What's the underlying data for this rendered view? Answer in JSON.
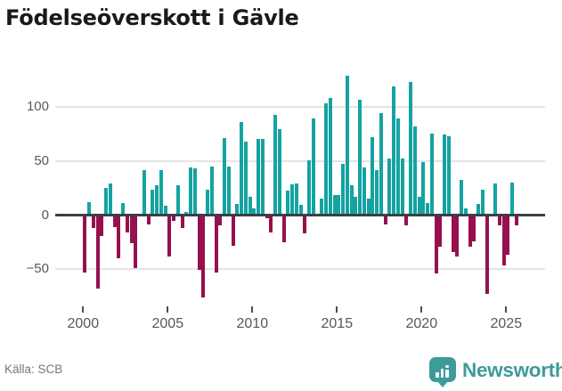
{
  "title": "Födelseöverskott i Gävle",
  "source": "Källa: SCB",
  "branding": {
    "name": "Newsworthy",
    "logo_color": "#3d9b99",
    "logo_icon": "bar-chart-exclamation-bubble-icon"
  },
  "colors": {
    "positive_bar": "#14a3a1",
    "negative_bar": "#97104e",
    "axis": "#3b4047",
    "grid": "#e4e4e4",
    "tick_text": "#585858",
    "title_text": "#191919"
  },
  "chart_data": {
    "type": "bar",
    "title": "Födelseöverskott i Gävle",
    "frequency": "quarterly",
    "x_start": "2000-Q1",
    "x_end": "2025-Q3",
    "x_tick_labels": [
      "2000",
      "2005",
      "2010",
      "2015",
      "2020",
      "2025"
    ],
    "y_ticks": [
      100,
      50,
      0,
      -50
    ],
    "y_tick_labels": [
      "100",
      "50",
      "0",
      "−50"
    ],
    "ylim": [
      -80,
      137
    ],
    "grid": true,
    "legend": false,
    "values": [
      -52,
      11,
      -11,
      -67,
      -18,
      24,
      28,
      -10,
      -39,
      10,
      -15,
      -25,
      -48,
      0,
      40,
      -7,
      22,
      26,
      40,
      7,
      -37,
      -4,
      26,
      -11,
      2,
      43,
      42,
      -49,
      -75,
      22,
      44,
      -52,
      -8,
      70,
      44,
      -27,
      9,
      85,
      67,
      16,
      5,
      69,
      69,
      -2,
      -15,
      91,
      78,
      -24,
      21,
      27,
      28,
      8,
      -16,
      49,
      88,
      0,
      14,
      102,
      107,
      17,
      17,
      46,
      128,
      26,
      16,
      105,
      43,
      14,
      71,
      40,
      93,
      -7,
      51,
      118,
      88,
      51,
      -8,
      122,
      81,
      16,
      48,
      10,
      74,
      -53,
      -28,
      73,
      72,
      -33,
      -37,
      31,
      5,
      -28,
      -23,
      9,
      22,
      -72,
      0,
      28,
      -8,
      -45,
      -35,
      29,
      -8
    ]
  }
}
